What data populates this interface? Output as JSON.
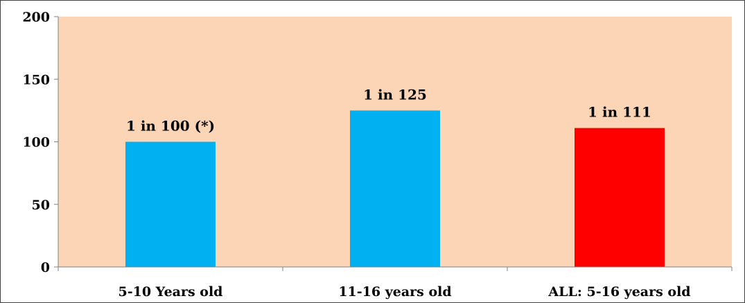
{
  "chart_data": {
    "type": "bar",
    "title": "",
    "xlabel": "",
    "ylabel": "",
    "categories": [
      "5-10 Years old",
      "11-16 years old",
      "ALL: 5-16 years old"
    ],
    "values": [
      100,
      125,
      111
    ],
    "data_labels": [
      "1 in 100 (*)",
      "1 in 125",
      "1 in 111"
    ],
    "bar_colors": [
      "#00B0F0",
      "#00B0F0",
      "#FF0000"
    ],
    "ylim": [
      0,
      200
    ],
    "yticks": [
      0,
      50,
      100,
      150,
      200
    ],
    "ytick_labels": [
      "0",
      "50",
      "100",
      "150",
      "200"
    ],
    "grid": false,
    "legend": false,
    "plot_background": "#FBD5B5"
  }
}
